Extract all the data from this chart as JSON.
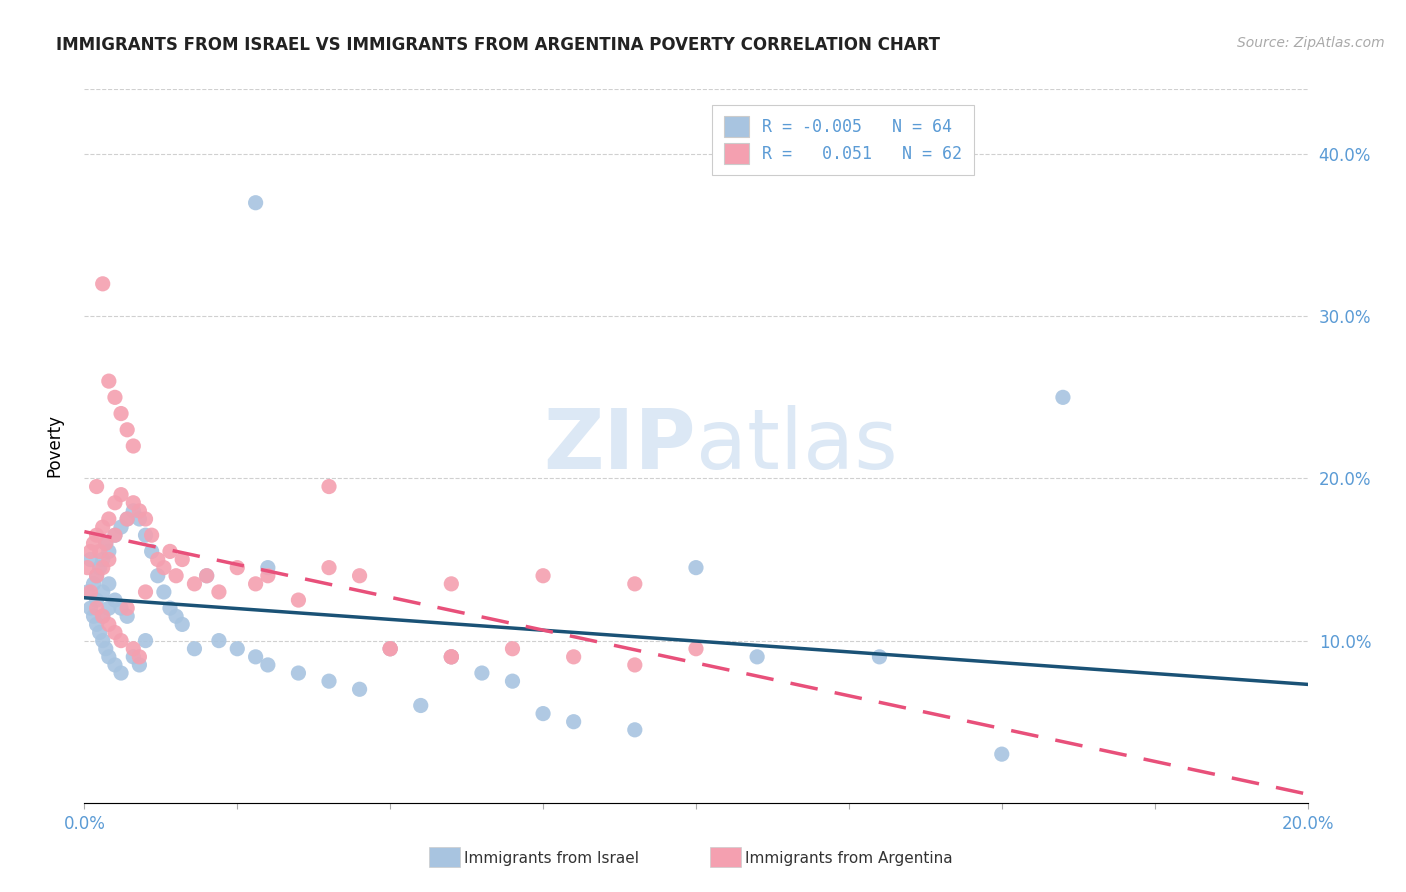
{
  "title": "IMMIGRANTS FROM ISRAEL VS IMMIGRANTS FROM ARGENTINA POVERTY CORRELATION CHART",
  "source": "Source: ZipAtlas.com",
  "ylabel": "Poverty",
  "ytick_values": [
    0.1,
    0.2,
    0.3,
    0.4
  ],
  "xlim": [
    0.0,
    0.2
  ],
  "ylim": [
    0.0,
    0.44
  ],
  "legend_line1": "R = -0.005   N = 64",
  "legend_line2": "R =   0.051   N = 62",
  "israel_color": "#a8c4e0",
  "argentina_color": "#f4a0b0",
  "israel_line_color": "#1a5276",
  "argentina_line_color": "#e8507a",
  "watermark_color": "#dce8f5",
  "israel_R": -0.005,
  "israel_N": 64,
  "argentina_R": 0.051,
  "argentina_N": 62,
  "israel_x": [
    0.0005,
    0.001,
    0.001,
    0.0015,
    0.0015,
    0.002,
    0.002,
    0.002,
    0.0025,
    0.0025,
    0.003,
    0.003,
    0.003,
    0.003,
    0.0035,
    0.0035,
    0.004,
    0.004,
    0.004,
    0.004,
    0.005,
    0.005,
    0.005,
    0.006,
    0.006,
    0.006,
    0.007,
    0.007,
    0.008,
    0.008,
    0.009,
    0.009,
    0.01,
    0.01,
    0.011,
    0.012,
    0.013,
    0.014,
    0.015,
    0.016,
    0.018,
    0.02,
    0.022,
    0.025,
    0.028,
    0.03,
    0.035,
    0.04,
    0.045,
    0.05,
    0.055,
    0.06,
    0.065,
    0.07,
    0.075,
    0.08,
    0.09,
    0.1,
    0.11,
    0.13,
    0.15,
    0.03,
    0.028,
    0.16
  ],
  "israel_y": [
    0.13,
    0.15,
    0.12,
    0.135,
    0.115,
    0.14,
    0.11,
    0.125,
    0.145,
    0.105,
    0.15,
    0.115,
    0.1,
    0.13,
    0.16,
    0.095,
    0.155,
    0.09,
    0.12,
    0.135,
    0.165,
    0.085,
    0.125,
    0.17,
    0.08,
    0.12,
    0.175,
    0.115,
    0.18,
    0.09,
    0.175,
    0.085,
    0.165,
    0.1,
    0.155,
    0.14,
    0.13,
    0.12,
    0.115,
    0.11,
    0.095,
    0.14,
    0.1,
    0.095,
    0.09,
    0.085,
    0.08,
    0.075,
    0.07,
    0.095,
    0.06,
    0.09,
    0.08,
    0.075,
    0.055,
    0.05,
    0.045,
    0.145,
    0.09,
    0.09,
    0.03,
    0.145,
    0.37,
    0.25
  ],
  "argentina_x": [
    0.0005,
    0.001,
    0.001,
    0.0015,
    0.002,
    0.002,
    0.002,
    0.0025,
    0.003,
    0.003,
    0.003,
    0.0035,
    0.004,
    0.004,
    0.004,
    0.005,
    0.005,
    0.005,
    0.006,
    0.006,
    0.007,
    0.007,
    0.008,
    0.008,
    0.009,
    0.009,
    0.01,
    0.01,
    0.011,
    0.012,
    0.013,
    0.014,
    0.015,
    0.016,
    0.018,
    0.02,
    0.022,
    0.025,
    0.028,
    0.03,
    0.035,
    0.04,
    0.045,
    0.06,
    0.075,
    0.09,
    0.002,
    0.003,
    0.004,
    0.005,
    0.006,
    0.007,
    0.008,
    0.04,
    0.05,
    0.06,
    0.07,
    0.08,
    0.09,
    0.1,
    0.05,
    0.06
  ],
  "argentina_y": [
    0.145,
    0.155,
    0.13,
    0.16,
    0.165,
    0.12,
    0.14,
    0.155,
    0.17,
    0.115,
    0.145,
    0.16,
    0.175,
    0.11,
    0.15,
    0.185,
    0.105,
    0.165,
    0.19,
    0.1,
    0.175,
    0.12,
    0.185,
    0.095,
    0.18,
    0.09,
    0.175,
    0.13,
    0.165,
    0.15,
    0.145,
    0.155,
    0.14,
    0.15,
    0.135,
    0.14,
    0.13,
    0.145,
    0.135,
    0.14,
    0.125,
    0.145,
    0.14,
    0.135,
    0.14,
    0.135,
    0.195,
    0.32,
    0.26,
    0.25,
    0.24,
    0.23,
    0.22,
    0.195,
    0.095,
    0.09,
    0.095,
    0.09,
    0.085,
    0.095,
    0.095,
    0.09
  ]
}
